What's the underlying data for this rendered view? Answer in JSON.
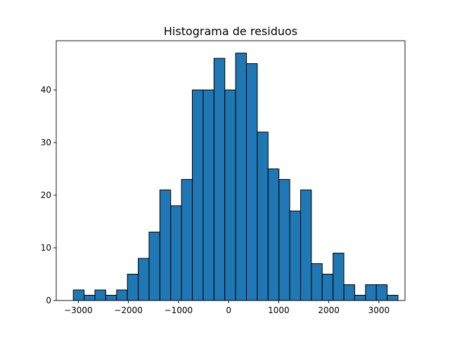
{
  "chart_data": {
    "type": "bar",
    "subtype": "histogram",
    "title": "Histograma de residuos",
    "xlabel": "",
    "ylabel": "",
    "xlim": [
      -3440,
      3520
    ],
    "ylim": [
      0,
      49.35
    ],
    "bin_start": -3100,
    "bin_width": 216,
    "counts": [
      2,
      1,
      2,
      1,
      2,
      5,
      8,
      13,
      21,
      18,
      23,
      40,
      40,
      46,
      40,
      47,
      45,
      32,
      25,
      23,
      17,
      21,
      7,
      5,
      9,
      3,
      1,
      3,
      3,
      1
    ],
    "xticks": [
      -3000,
      -2000,
      -1000,
      0,
      1000,
      2000,
      3000
    ],
    "xtick_labels": [
      "−3000",
      "−2000",
      "−1000",
      "0",
      "1000",
      "2000",
      "3000"
    ],
    "yticks": [
      0,
      10,
      20,
      30,
      40
    ],
    "ytick_labels": [
      "0",
      "10",
      "20",
      "30",
      "40"
    ],
    "grid": false,
    "bar_color": "#1f77b4",
    "edge_color": "#000000"
  }
}
